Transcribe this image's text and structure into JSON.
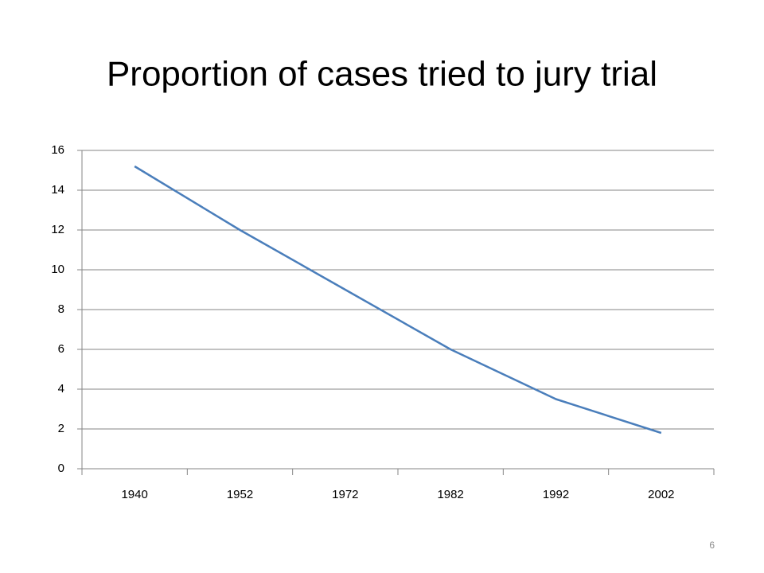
{
  "chart_data": {
    "type": "line",
    "title": "Proportion of cases tried to jury trial",
    "categories": [
      "1940",
      "1952",
      "1972",
      "1982",
      "1992",
      "2002"
    ],
    "values": [
      15.2,
      12.0,
      9.0,
      6.0,
      3.5,
      1.8
    ],
    "color": "#4a7ebb",
    "ylim": [
      0,
      16
    ],
    "yticks": [
      0,
      2,
      4,
      6,
      8,
      10,
      12,
      14,
      16
    ],
    "grid": true
  },
  "slide_number": "6"
}
